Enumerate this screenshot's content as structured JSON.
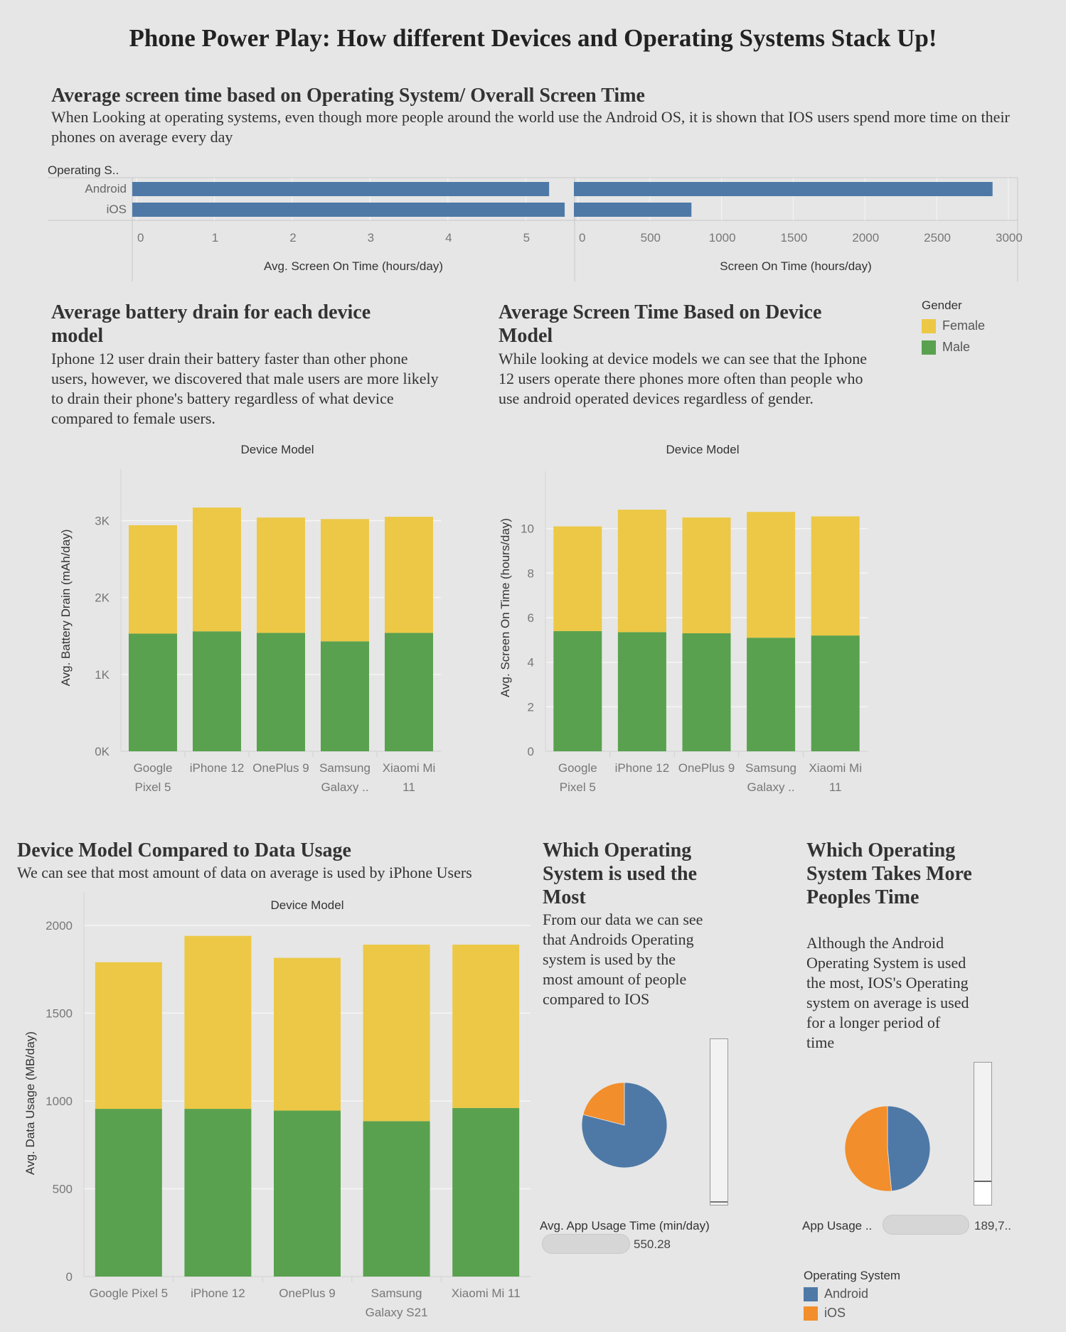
{
  "title": "Phone Power Play: How different Devices and Operating Systems Stack Up!",
  "sections": {
    "os_screen": {
      "title": "Average screen time based on Operating System/ Overall Screen Time",
      "desc": "When Looking at operating systems, even though more people around the world use the Android OS, it is shown that IOS users spend more time on their phones on average every day"
    },
    "battery": {
      "title": "Average battery drain for each device model",
      "desc": "Iphone 12 user drain their battery faster than other phone users, however, we discovered that male users are more likely to drain their phone's battery regardless of what device compared to female users."
    },
    "device_screen": {
      "title": "Average Screen Time Based on Device Model",
      "desc": "While looking at device models we can see that the Iphone 12 users operate there phones more often than people who use android operated devices regardless of gender."
    },
    "data_usage": {
      "title": "Device Model Compared to Data Usage",
      "desc": "We can see that most amount of data on average is used by iPhone Users"
    },
    "os_most": {
      "title": "Which Operating System is used the Most",
      "desc": "From our data we can see that Androids Operating system is used by the most amount of people compared to IOS"
    },
    "os_time": {
      "title": "Which Operating System Takes More Peoples Time",
      "desc": "Although the Android Operating System is used the most, IOS's Operating system on average is used for a longer period of time"
    }
  },
  "gender_legend": {
    "title": "Gender",
    "items": [
      {
        "label": "Female",
        "color": "#ecc846"
      },
      {
        "label": "Male",
        "color": "#59a14f"
      }
    ]
  },
  "os_legend": {
    "title": "Operating System",
    "items": [
      {
        "label": "Android",
        "color": "#4e79a7"
      },
      {
        "label": "iOS",
        "color": "#f28e2b"
      }
    ]
  },
  "sliders": {
    "app_usage_avg": {
      "label": "Avg. App Usage Time (min/day)",
      "value": "550.28"
    },
    "app_usage_sum": {
      "label": "App Usage ..",
      "value": "189,7.."
    }
  },
  "chart_data": [
    {
      "id": "os_avg_screen",
      "type": "bar",
      "orientation": "horizontal",
      "row_header": "Operating S..",
      "categories": [
        "Android",
        "iOS"
      ],
      "values": [
        5.3,
        5.5
      ],
      "xlabel": "Avg. Screen On Time (hours/day)",
      "xlim": [
        0,
        5.6
      ],
      "xticks": [
        "0",
        "1",
        "2",
        "3",
        "4",
        "5"
      ],
      "color": "#4e79a7"
    },
    {
      "id": "os_total_screen",
      "type": "bar",
      "orientation": "horizontal",
      "categories": [
        "Android",
        "iOS"
      ],
      "values": [
        2890,
        790
      ],
      "xlabel": "Screen On Time (hours/day)",
      "xlim": [
        0,
        3050
      ],
      "xticks": [
        "0",
        "500",
        "1000",
        "1500",
        "2000",
        "2500",
        "3000"
      ],
      "color": "#4e79a7"
    },
    {
      "id": "battery_drain",
      "type": "bar",
      "stacked": true,
      "column_header": "Device Model",
      "categories": [
        [
          "Google",
          "Pixel 5"
        ],
        [
          "iPhone 12"
        ],
        [
          "OnePlus 9"
        ],
        [
          "Samsung",
          "Galaxy .."
        ],
        [
          "Xiaomi Mi",
          "11"
        ]
      ],
      "series": [
        {
          "name": "Male",
          "values": [
            1530,
            1560,
            1540,
            1430,
            1540
          ]
        },
        {
          "name": "Female",
          "values": [
            1410,
            1610,
            1500,
            1590,
            1510
          ]
        }
      ],
      "ylabel": "Avg. Battery Drain (mAh/day)",
      "ylim": [
        0,
        3300
      ],
      "yticks": [
        "0K",
        "1K",
        "2K",
        "3K"
      ],
      "ytick_values": [
        0,
        1000,
        2000,
        3000
      ]
    },
    {
      "id": "device_screen_time",
      "type": "bar",
      "stacked": true,
      "column_header": "Device Model",
      "categories": [
        [
          "Google",
          "Pixel 5"
        ],
        [
          "iPhone 12"
        ],
        [
          "OnePlus 9"
        ],
        [
          "Samsung",
          "Galaxy .."
        ],
        [
          "Xiaomi Mi",
          "11"
        ]
      ],
      "series": [
        {
          "name": "Male",
          "values": [
            5.4,
            5.35,
            5.3,
            5.1,
            5.2
          ]
        },
        {
          "name": "Female",
          "values": [
            4.7,
            5.5,
            5.2,
            5.65,
            5.35
          ]
        }
      ],
      "ylabel": "Avg. Screen On Time (hours/day)",
      "ylim": [
        0,
        11.3
      ],
      "yticks": [
        "0",
        "2",
        "4",
        "6",
        "8",
        "10"
      ],
      "ytick_values": [
        0,
        2,
        4,
        6,
        8,
        10
      ]
    },
    {
      "id": "data_usage",
      "type": "bar",
      "stacked": true,
      "column_header": "Device Model",
      "categories": [
        [
          "Google Pixel 5"
        ],
        [
          "iPhone 12"
        ],
        [
          "OnePlus 9"
        ],
        [
          "Samsung",
          "Galaxy S21"
        ],
        [
          "Xiaomi Mi 11"
        ]
      ],
      "series": [
        {
          "name": "Male",
          "values": [
            955,
            955,
            945,
            885,
            960
          ]
        },
        {
          "name": "Female",
          "values": [
            835,
            985,
            870,
            1005,
            930
          ]
        }
      ],
      "ylabel": "Avg. Data Usage (MB/day)",
      "ylim": [
        0,
        2040
      ],
      "yticks": [
        "0",
        "500",
        "1000",
        "1500",
        "2000"
      ],
      "ytick_values": [
        0,
        500,
        1000,
        1500,
        2000
      ]
    },
    {
      "id": "os_users_pie",
      "type": "pie",
      "slices": [
        {
          "name": "Android",
          "value": 0.79
        },
        {
          "name": "iOS",
          "value": 0.21
        }
      ]
    },
    {
      "id": "os_time_pie",
      "type": "pie",
      "slices": [
        {
          "name": "Android",
          "value": 0.485
        },
        {
          "name": "iOS",
          "value": 0.515
        }
      ]
    }
  ]
}
